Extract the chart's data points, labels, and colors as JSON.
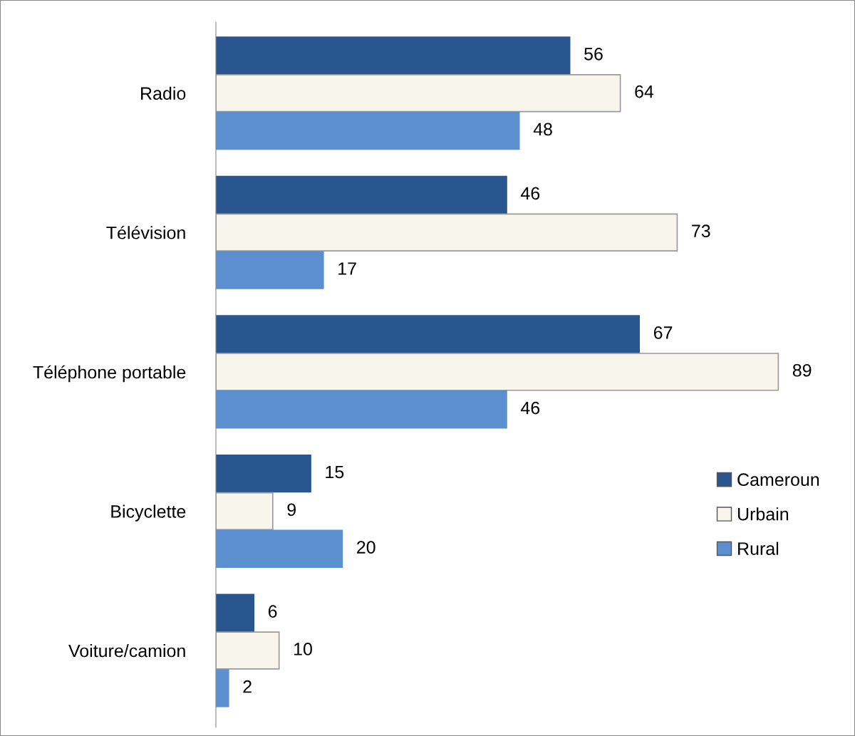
{
  "chart_data": {
    "type": "bar",
    "orientation": "horizontal",
    "categories": [
      "Radio",
      "Télévision",
      "Téléphone portable",
      "Bicyclette",
      "Voiture/camion"
    ],
    "series": [
      {
        "name": "Cameroun",
        "color": "#2a568f",
        "values": [
          56,
          46,
          67,
          15,
          6
        ]
      },
      {
        "name": "Urbain",
        "color": "#f7f5ec",
        "values": [
          64,
          73,
          89,
          9,
          10
        ]
      },
      {
        "name": "Rural",
        "color": "#5b8fd0",
        "values": [
          48,
          17,
          46,
          20,
          2
        ]
      }
    ],
    "data_labels": true,
    "tick_labels": "y",
    "legend": "right"
  }
}
